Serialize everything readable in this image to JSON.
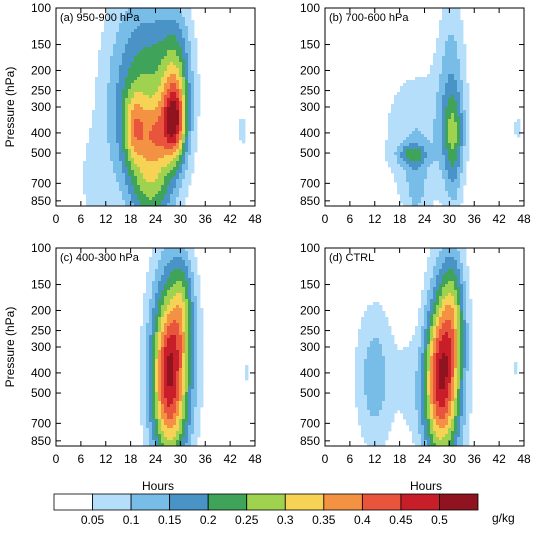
{
  "chart_data": {
    "type": "heatmap",
    "ylabel": "Pressure (hPa)",
    "xlabel": "Hours",
    "x_ticks": [
      "0",
      "6",
      "12",
      "18",
      "24",
      "30",
      "36",
      "42",
      "48"
    ],
    "y_ticks": [
      "100",
      "150",
      "200",
      "250",
      "300",
      "400",
      "500",
      "700",
      "850"
    ],
    "xlim": [
      0,
      48
    ],
    "ylim": [
      900,
      100
    ],
    "y_scale": "log",
    "panels": [
      {
        "label": "(a) 950-900 hPa",
        "blobs": [
          {
            "t": 19,
            "p": 280,
            "st": 6.0,
            "sp": 0.85,
            "a": 0.16
          },
          {
            "t": 25,
            "p": 280,
            "st": 5.5,
            "sp": 0.85,
            "a": 0.13
          },
          {
            "t": 23,
            "p": 720,
            "st": 3.5,
            "sp": 0.35,
            "a": 0.15
          },
          {
            "t": 29,
            "p": 220,
            "st": 2.5,
            "sp": 0.5,
            "a": 0.15
          },
          {
            "t": 28.5,
            "p": 360,
            "st": 2.0,
            "sp": 0.3,
            "a": 0.3
          },
          {
            "t": 19,
            "p": 380,
            "st": 2.0,
            "sp": 0.28,
            "a": 0.17
          },
          {
            "t": 24,
            "p": 400,
            "st": 2.0,
            "sp": 0.24,
            "a": 0.12
          },
          {
            "t": 9,
            "p": 700,
            "st": 2.5,
            "sp": 0.4,
            "a": 0.06
          },
          {
            "t": 45,
            "p": 390,
            "st": 0.9,
            "sp": 0.15,
            "a": 0.08
          }
        ]
      },
      {
        "label": "(b) 700-600 hPa",
        "blobs": [
          {
            "t": 22,
            "p": 420,
            "st": 6.5,
            "sp": 0.6,
            "a": 0.09
          },
          {
            "t": 30.5,
            "p": 230,
            "st": 2.5,
            "sp": 0.75,
            "a": 0.12
          },
          {
            "t": 31,
            "p": 400,
            "st": 1.8,
            "sp": 0.3,
            "a": 0.14
          },
          {
            "t": 21,
            "p": 510,
            "st": 2.5,
            "sp": 0.08,
            "a": 0.13
          },
          {
            "t": 22,
            "p": 750,
            "st": 2.0,
            "sp": 0.35,
            "a": 0.07
          },
          {
            "t": 31,
            "p": 720,
            "st": 1.5,
            "sp": 0.3,
            "a": 0.06
          },
          {
            "t": 46.5,
            "p": 380,
            "st": 0.8,
            "sp": 0.12,
            "a": 0.07
          }
        ]
      },
      {
        "label": "(c) 400-300 hPa",
        "blobs": [
          {
            "t": 28,
            "p": 330,
            "st": 3.8,
            "sp": 0.8,
            "a": 0.33
          },
          {
            "t": 27,
            "p": 380,
            "st": 2.5,
            "sp": 0.4,
            "a": 0.17
          },
          {
            "t": 27,
            "p": 720,
            "st": 3.2,
            "sp": 0.35,
            "a": 0.12
          },
          {
            "t": 30.5,
            "p": 190,
            "st": 1.8,
            "sp": 0.4,
            "a": 0.1
          },
          {
            "t": 46,
            "p": 400,
            "st": 0.8,
            "sp": 0.14,
            "a": 0.06
          }
        ]
      },
      {
        "label": "(d) CTRL",
        "blobs": [
          {
            "t": 29,
            "p": 350,
            "st": 3.2,
            "sp": 0.75,
            "a": 0.34
          },
          {
            "t": 27,
            "p": 390,
            "st": 2.5,
            "sp": 0.4,
            "a": 0.16
          },
          {
            "t": 12,
            "p": 420,
            "st": 3.5,
            "sp": 0.6,
            "a": 0.13
          },
          {
            "t": 27,
            "p": 720,
            "st": 3.5,
            "sp": 0.4,
            "a": 0.12
          },
          {
            "t": 31,
            "p": 200,
            "st": 2.0,
            "sp": 0.5,
            "a": 0.12
          },
          {
            "t": 20,
            "p": 430,
            "st": 2.0,
            "sp": 0.4,
            "a": 0.05
          },
          {
            "t": 46,
            "p": 380,
            "st": 0.8,
            "sp": 0.12,
            "a": 0.06
          }
        ]
      }
    ],
    "colorbar": {
      "labels": [
        "0.05",
        "0.1",
        "0.15",
        "0.2",
        "0.25",
        "0.3",
        "0.35",
        "0.4",
        "0.45",
        "0.5"
      ],
      "levels": [
        0.05,
        0.1,
        0.15,
        0.2,
        0.25,
        0.3,
        0.35,
        0.4,
        0.45,
        0.5
      ],
      "colors": [
        "#ffffff",
        "#b4defa",
        "#78bde8",
        "#4a93c6",
        "#3fa35a",
        "#9fd24f",
        "#f7d355",
        "#f29242",
        "#e8543c",
        "#c81e2a",
        "#8f1420"
      ],
      "unit": "g/kg"
    }
  }
}
